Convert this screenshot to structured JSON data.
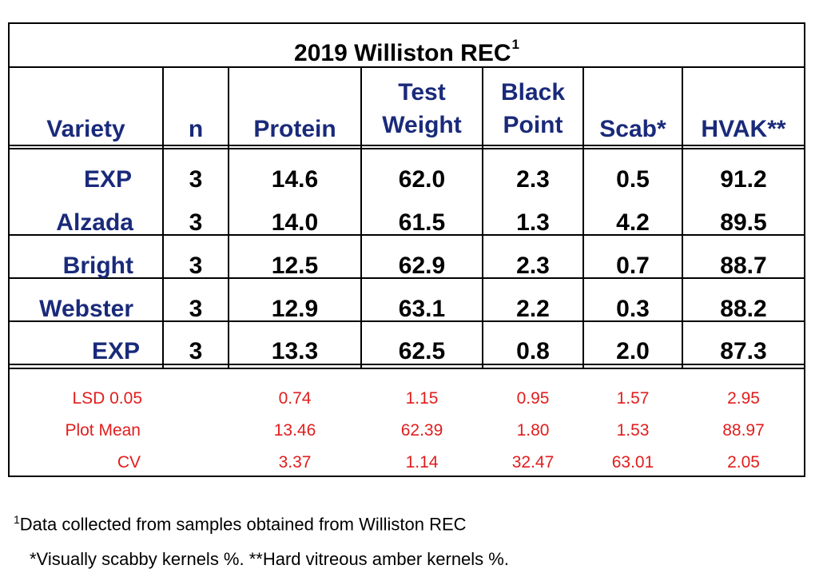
{
  "title": {
    "text": "2019 Williston REC",
    "sup": "1"
  },
  "headers": {
    "variety": "Variety",
    "n": "n",
    "protein": "Protein",
    "test_weight": [
      "Test",
      "Weight"
    ],
    "black_point": [
      "Black",
      "Point"
    ],
    "scab": "Scab*",
    "hvak": "HVAK**"
  },
  "rows": [
    {
      "variety": "EXP",
      "n": "3",
      "protein": "14.6",
      "test_weight": "62.0",
      "black_point": "2.3",
      "scab": "0.5",
      "hvak": "91.2"
    },
    {
      "variety": "Alzada",
      "n": "3",
      "protein": "14.0",
      "test_weight": "61.5",
      "black_point": "1.3",
      "scab": "4.2",
      "hvak": "89.5"
    },
    {
      "variety": "Bright",
      "n": "3",
      "protein": "12.5",
      "test_weight": "62.9",
      "black_point": "2.3",
      "scab": "0.7",
      "hvak": "88.7"
    },
    {
      "variety": "Webster",
      "n": "3",
      "protein": "12.9",
      "test_weight": "63.1",
      "black_point": "2.2",
      "scab": "0.3",
      "hvak": "88.2"
    },
    {
      "variety": "EXP",
      "n": "3",
      "protein": "13.3",
      "test_weight": "62.5",
      "black_point": "0.8",
      "scab": "2.0",
      "hvak": "87.3"
    }
  ],
  "stats": [
    {
      "label": "LSD 0.05",
      "protein": "0.74",
      "test_weight": "1.15",
      "black_point": "0.95",
      "scab": "1.57",
      "hvak": "2.95"
    },
    {
      "label": "Plot Mean",
      "protein": "13.46",
      "test_weight": "62.39",
      "black_point": "1.80",
      "scab": "1.53",
      "hvak": "88.97"
    },
    {
      "label": "CV",
      "protein": "3.37",
      "test_weight": "1.14",
      "black_point": "32.47",
      "scab": "63.01",
      "hvak": "2.05"
    }
  ],
  "footnotes": {
    "note1_sup": "1",
    "note1": "Data collected from samples obtained from Williston REC",
    "note2": "*Visually scabby kernels %.  **Hard vitreous amber kernels %."
  },
  "colors": {
    "header_text": "#1a2a7a",
    "stat_text": "#e11d1d",
    "border": "#000000"
  }
}
